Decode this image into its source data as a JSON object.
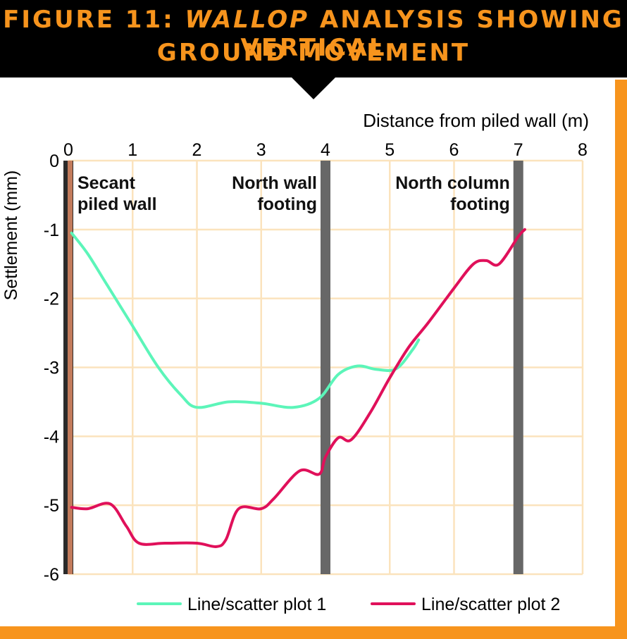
{
  "header": {
    "title_prefix": "FIGURE 11: ",
    "title_italic": "WALLOP",
    "title_rest": " ANALYSIS SHOWING VERTICAL",
    "title_line2": "GROUND MOVEMENT"
  },
  "colors": {
    "banner": "#000000",
    "accent_orange": "#f7941d",
    "grid": "#fbe3bd",
    "series1": "#5cf5b9",
    "series2": "#e0105a",
    "wall_secant": "#c27b5c",
    "footing": "#676767"
  },
  "chart_data": {
    "type": "line",
    "xlabel": "Distance from piled wall (m)",
    "ylabel": "Settlement (mm)",
    "xlim": [
      0,
      8
    ],
    "ylim": [
      -6,
      0
    ],
    "x_axis_position": "top",
    "x_ticks": [
      "0",
      "1",
      "2",
      "3",
      "4",
      "5",
      "6",
      "7",
      "8"
    ],
    "y_ticks": [
      "0",
      "-1",
      "-2",
      "-3",
      "-4",
      "-5",
      "-6"
    ],
    "grid": true,
    "legend_position": "bottom",
    "series": [
      {
        "name": "Line/scatter plot 1",
        "color": "#5cf5b9",
        "points": [
          [
            0.05,
            -1.05
          ],
          [
            0.3,
            -1.35
          ],
          [
            0.6,
            -1.8
          ],
          [
            1.0,
            -2.4
          ],
          [
            1.4,
            -3.0
          ],
          [
            1.75,
            -3.4
          ],
          [
            2.0,
            -3.58
          ],
          [
            2.5,
            -3.5
          ],
          [
            3.0,
            -3.52
          ],
          [
            3.5,
            -3.58
          ],
          [
            3.9,
            -3.45
          ],
          [
            4.2,
            -3.1
          ],
          [
            4.5,
            -2.98
          ],
          [
            4.8,
            -3.03
          ],
          [
            5.1,
            -3.02
          ],
          [
            5.35,
            -2.75
          ],
          [
            5.45,
            -2.6
          ]
        ]
      },
      {
        "name": "Line/scatter plot 2",
        "color": "#e0105a",
        "points": [
          [
            0.05,
            -5.03
          ],
          [
            0.3,
            -5.05
          ],
          [
            0.65,
            -4.98
          ],
          [
            0.9,
            -5.3
          ],
          [
            1.1,
            -5.55
          ],
          [
            1.5,
            -5.55
          ],
          [
            2.0,
            -5.55
          ],
          [
            2.3,
            -5.6
          ],
          [
            2.45,
            -5.5
          ],
          [
            2.65,
            -5.05
          ],
          [
            3.0,
            -5.05
          ],
          [
            3.2,
            -4.9
          ],
          [
            3.6,
            -4.5
          ],
          [
            3.9,
            -4.55
          ],
          [
            4.0,
            -4.3
          ],
          [
            4.2,
            -4.02
          ],
          [
            4.4,
            -4.05
          ],
          [
            4.7,
            -3.65
          ],
          [
            5.0,
            -3.15
          ],
          [
            5.3,
            -2.7
          ],
          [
            5.6,
            -2.35
          ],
          [
            6.0,
            -1.85
          ],
          [
            6.3,
            -1.5
          ],
          [
            6.5,
            -1.45
          ],
          [
            6.7,
            -1.5
          ],
          [
            7.0,
            -1.1
          ],
          [
            7.1,
            -1.0
          ]
        ]
      }
    ],
    "vertical_bands": [
      {
        "x": 0.0,
        "color": "#c27b5c",
        "label_lines": [
          "Secant",
          "piled wall"
        ]
      },
      {
        "x": 4.0,
        "color": "#676767",
        "label_lines": [
          "North wall",
          "footing"
        ]
      },
      {
        "x": 7.0,
        "color": "#676767",
        "label_lines": [
          "North column",
          "footing"
        ]
      }
    ]
  }
}
